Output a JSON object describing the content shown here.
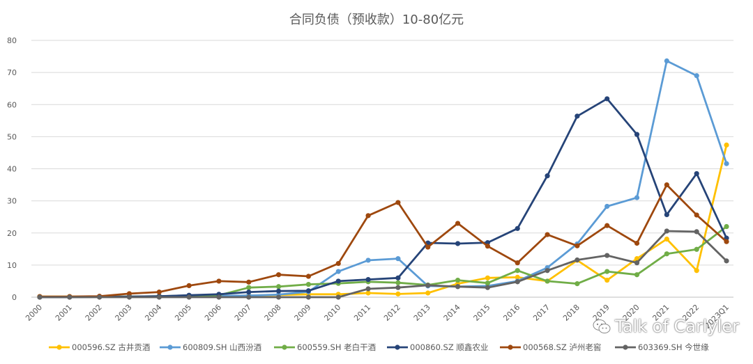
{
  "chart_data": {
    "type": "line",
    "title": "合同负债（预收款）10-80亿元",
    "xlabel": "",
    "ylabel": "",
    "ylim": [
      0,
      80
    ],
    "yticks": [
      0,
      10,
      20,
      30,
      40,
      50,
      60,
      70,
      80
    ],
    "grid": true,
    "legend_position": "bottom",
    "categories": [
      "2000",
      "2001",
      "2002",
      "2003",
      "2004",
      "2005",
      "2006",
      "2007",
      "2008",
      "2009",
      "2010",
      "2011",
      "2012",
      "2013",
      "2014",
      "2015",
      "2016",
      "2017",
      "2018",
      "2019",
      "2020",
      "2021",
      "2022",
      "2023Q1"
    ],
    "series": [
      {
        "name": "000596.SZ 古井贡酒",
        "color": "#FFC000",
        "values": [
          0.2,
          0.2,
          0.2,
          0.2,
          0.2,
          0.3,
          0.3,
          0.5,
          0.7,
          0.9,
          0.9,
          1.3,
          1.0,
          1.3,
          4.2,
          6.0,
          6.2,
          5.0,
          11.5,
          5.3,
          12.0,
          18.1,
          8.3,
          47.4
        ]
      },
      {
        "name": "600809.SH 山西汾酒",
        "color": "#5B9BD5",
        "values": [
          0.1,
          0.1,
          0.1,
          0.2,
          0.2,
          0.3,
          0.4,
          0.5,
          0.8,
          1.7,
          8.0,
          11.5,
          12.0,
          3.5,
          3.3,
          3.5,
          5.0,
          9.2,
          16.6,
          28.3,
          31.0,
          73.6,
          69.0,
          41.6
        ]
      },
      {
        "name": "600559.SH 老白干酒",
        "color": "#70AD47",
        "values": [
          0.1,
          0.1,
          0.1,
          0.2,
          0.3,
          0.5,
          0.6,
          3.0,
          3.3,
          4.0,
          4.3,
          4.8,
          4.5,
          3.8,
          5.3,
          4.4,
          8.3,
          5.0,
          4.2,
          8.0,
          7.0,
          13.5,
          14.9,
          22.0
        ]
      },
      {
        "name": "000860.SZ 顺鑫农业",
        "color": "#264478",
        "values": [
          0.0,
          0.0,
          0.1,
          0.2,
          0.3,
          0.6,
          0.9,
          1.6,
          1.9,
          2.0,
          5.0,
          5.5,
          6.0,
          16.9,
          16.7,
          17.0,
          21.4,
          37.8,
          56.4,
          61.8,
          50.7,
          25.7,
          38.5,
          18.4
        ]
      },
      {
        "name": "000568.SZ 泸州老窖",
        "color": "#9E480E",
        "values": [
          0.2,
          0.2,
          0.3,
          1.1,
          1.6,
          3.6,
          5.0,
          4.7,
          7.0,
          6.5,
          10.5,
          25.4,
          29.5,
          15.6,
          23.0,
          15.9,
          10.7,
          19.5,
          16.0,
          22.3,
          16.8,
          35.0,
          25.6,
          17.3
        ]
      },
      {
        "name": "603369.SH 今世缘",
        "color": "#636363",
        "values": [
          0.0,
          0.0,
          0.0,
          0.0,
          0.0,
          0.0,
          0.0,
          0.0,
          0.0,
          0.0,
          0.0,
          2.6,
          3.0,
          3.7,
          3.3,
          3.0,
          4.8,
          8.3,
          11.6,
          13.0,
          10.7,
          20.6,
          20.4,
          11.3
        ]
      }
    ]
  },
  "watermark": {
    "text": "Talk of Carlyler",
    "icon": "wechat-icon"
  }
}
